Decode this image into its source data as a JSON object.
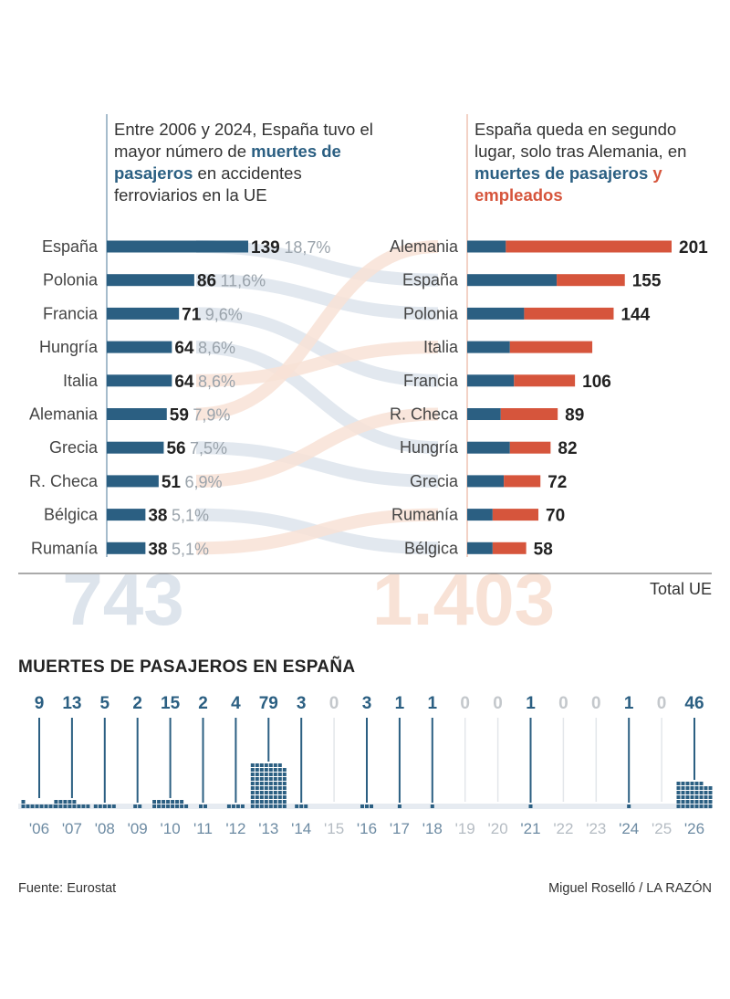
{
  "intro_left": {
    "pre": "Entre 2006 y 2024, España tuvo el mayor número de ",
    "highlight": "muertes de pasajeros",
    "post": " en accidentes ferroviarios en la UE"
  },
  "intro_right": {
    "pre": "España queda en segundo lugar, solo tras Alemania, en ",
    "highlight1": "muertes de pasajeros",
    "mid": " ",
    "highlight2": "y empleados"
  },
  "totals": {
    "label": "Total UE",
    "passengers": "743",
    "total": "1.403"
  },
  "section_title": "MUERTES DE PASAJEROS EN ESPAÑA",
  "source": "Fuente: Eurostat",
  "credit": "Miguel Roselló / LA RAZÓN",
  "colors": {
    "passengers": "#2b5f82",
    "employees": "#d6553c",
    "muted": "#9aa3ab",
    "ghost_blue": "#dde4ec",
    "ghost_red": "#f8e2d6"
  },
  "chart_data": [
    {
      "type": "bar",
      "categories": [
        "España",
        "Polonia",
        "Francia",
        "Hungría",
        "Italia",
        "Alemania",
        "Grecia",
        "R. Checa",
        "Bélgica",
        "Rumanía"
      ],
      "values": [
        139,
        86,
        71,
        64,
        64,
        59,
        56,
        51,
        38,
        38
      ],
      "value_labels": [
        "139",
        "86",
        "71",
        "64",
        "64",
        "59",
        "56",
        "51",
        "38",
        "38"
      ],
      "pct_labels": [
        "18,7%",
        "11,6%",
        "9,6%",
        "8,6%",
        "8,6%",
        "7,9%",
        "7,5%",
        "6,9%",
        "5,1%",
        "5,1%"
      ]
    },
    {
      "type": "bar",
      "stacked": true,
      "categories": [
        "Alemania",
        "España",
        "Polonia",
        "Italia",
        "Francia",
        "R. Checa",
        "Hungría",
        "Grecia",
        "Rumanía",
        "Bélgica"
      ],
      "series": [
        {
          "values": [
            38,
            88,
            56,
            42,
            46,
            33,
            42,
            36,
            25,
            25
          ]
        },
        {
          "values": [
            163,
            67,
            88,
            81,
            60,
            56,
            40,
            36,
            45,
            33
          ]
        }
      ],
      "totals": [
        201,
        155,
        144,
        123,
        106,
        89,
        82,
        72,
        70,
        58
      ],
      "total_labels": [
        "201",
        "155",
        "144",
        "",
        "106",
        "89",
        "82",
        "72",
        "70",
        "58"
      ]
    },
    {
      "type": "bar",
      "categories": [
        "'06",
        "'07",
        "'08",
        "'09",
        "'10",
        "'11",
        "'12",
        "'13",
        "'14",
        "'15",
        "'16",
        "'17",
        "'18",
        "'19",
        "'20",
        "'21",
        "'22",
        "'23",
        "'24",
        "'25",
        "'26"
      ],
      "values": [
        9,
        13,
        5,
        2,
        15,
        2,
        4,
        79,
        3,
        0,
        3,
        1,
        1,
        0,
        0,
        1,
        0,
        0,
        1,
        0,
        46
      ],
      "value_labels": [
        "9",
        "13",
        "5",
        "2",
        "15",
        "2",
        "4",
        "79",
        "3",
        "0",
        "3",
        "1",
        "1",
        "0",
        "0",
        "1",
        "0",
        "0",
        "1",
        "0",
        "46"
      ]
    }
  ]
}
